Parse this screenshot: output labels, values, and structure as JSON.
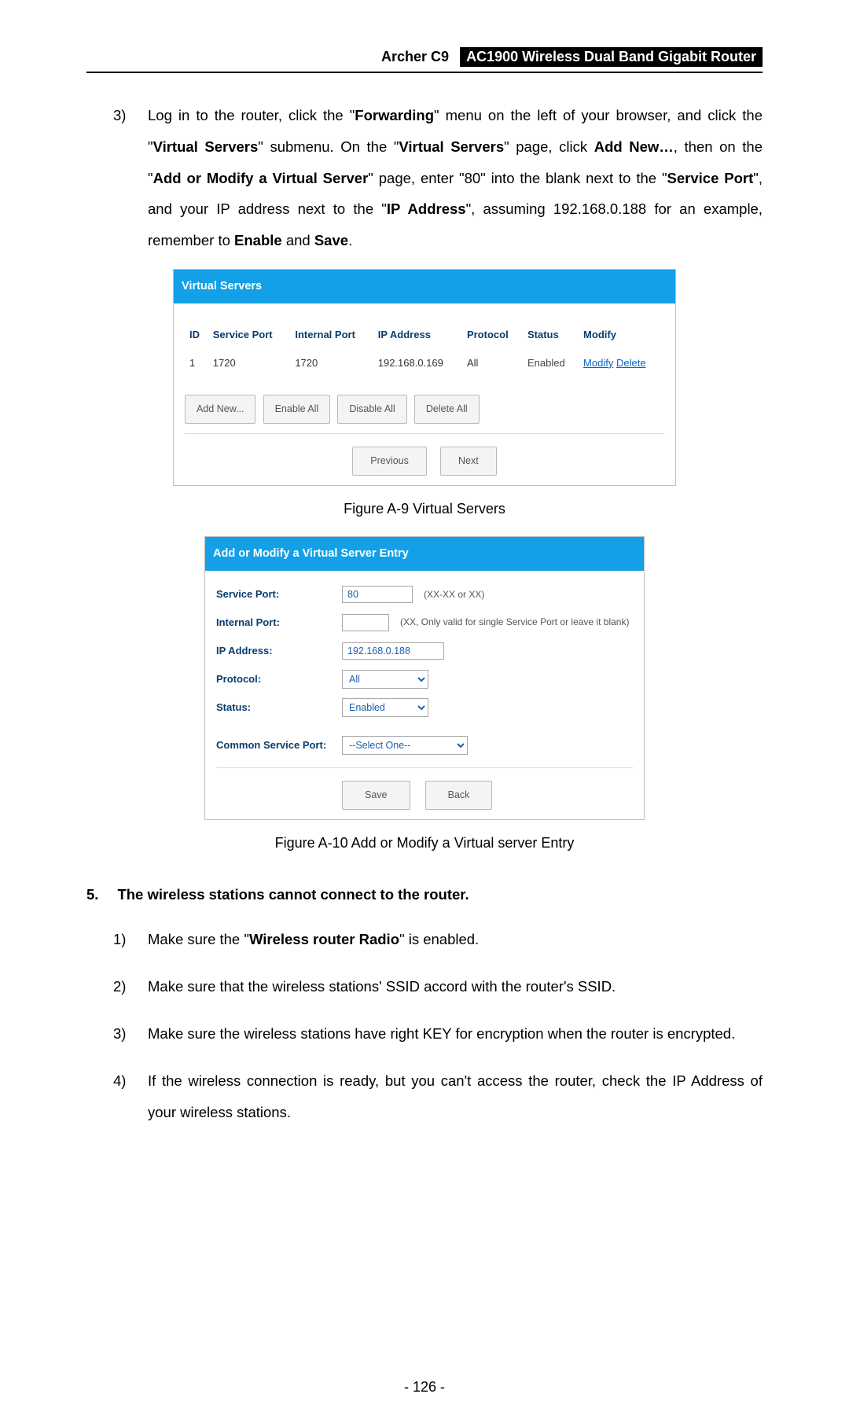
{
  "header": {
    "model": "Archer C9",
    "product": "AC1900 Wireless Dual Band Gigabit Router"
  },
  "intro": {
    "num": "3)",
    "segments": [
      "Log in to the router, click the \"",
      "Forwarding",
      "\" menu on the left of your browser, and click the \"",
      "Virtual Servers",
      "\" submenu. On the \"",
      "Virtual Servers",
      "\" page, click ",
      "Add New…",
      ", then on the \"",
      "Add or Modify a Virtual Server",
      "\" page, enter \"80\" into the blank next to the \"",
      "Service Port",
      "\", and your IP address next to the \"",
      "IP Address",
      "\", assuming 192.168.0.188 for an example, remember to ",
      "Enable",
      " and ",
      "Save",
      "."
    ],
    "bold_idx": [
      1,
      3,
      5,
      7,
      9,
      11,
      13,
      15,
      17
    ]
  },
  "vs_panel": {
    "title": "Virtual Servers",
    "columns": [
      "ID",
      "Service Port",
      "Internal Port",
      "IP Address",
      "Protocol",
      "Status",
      "Modify"
    ],
    "row": {
      "id": "1",
      "service_port": "1720",
      "internal_port": "1720",
      "ip": "192.168.0.169",
      "protocol": "All",
      "status": "Enabled",
      "modify": "Modify",
      "delete": "Delete"
    },
    "buttons": {
      "add": "Add New...",
      "enable_all": "Enable All",
      "disable_all": "Disable All",
      "delete_all": "Delete All",
      "prev": "Previous",
      "next": "Next"
    }
  },
  "caption1": "Figure A-9 Virtual Servers",
  "form_panel": {
    "title": "Add or Modify a Virtual Server Entry",
    "labels": {
      "service_port": "Service Port:",
      "internal_port": "Internal Port:",
      "ip": "IP Address:",
      "protocol": "Protocol:",
      "status": "Status:",
      "common": "Common Service Port:"
    },
    "values": {
      "service_port": "80",
      "internal_port": "",
      "ip": "192.168.0.188",
      "protocol": "All",
      "status": "Enabled",
      "common": "--Select One--"
    },
    "hints": {
      "service_port": "(XX-XX or XX)",
      "internal_port": "(XX, Only valid for single Service Port or leave it blank)"
    },
    "buttons": {
      "save": "Save",
      "back": "Back"
    }
  },
  "caption2": "Figure A-10 Add or Modify a Virtual server Entry",
  "q5": {
    "num": "5.",
    "text": "The wireless stations cannot connect to the router."
  },
  "subitems": [
    {
      "n": "1)",
      "pre": "Make sure the \"",
      "bold": "Wireless router Radio",
      "post": "\" is enabled."
    },
    {
      "n": "2)",
      "pre": "Make sure that the wireless stations' SSID accord with the router's SSID.",
      "bold": "",
      "post": ""
    },
    {
      "n": "3)",
      "pre": "Make sure the wireless stations have right KEY for encryption when the router is encrypted.",
      "bold": "",
      "post": ""
    },
    {
      "n": "4)",
      "pre": "If the wireless connection is ready, but you can't access the router, check the IP Address of your wireless stations.",
      "bold": "",
      "post": ""
    }
  ],
  "page_num": "- 126 -"
}
